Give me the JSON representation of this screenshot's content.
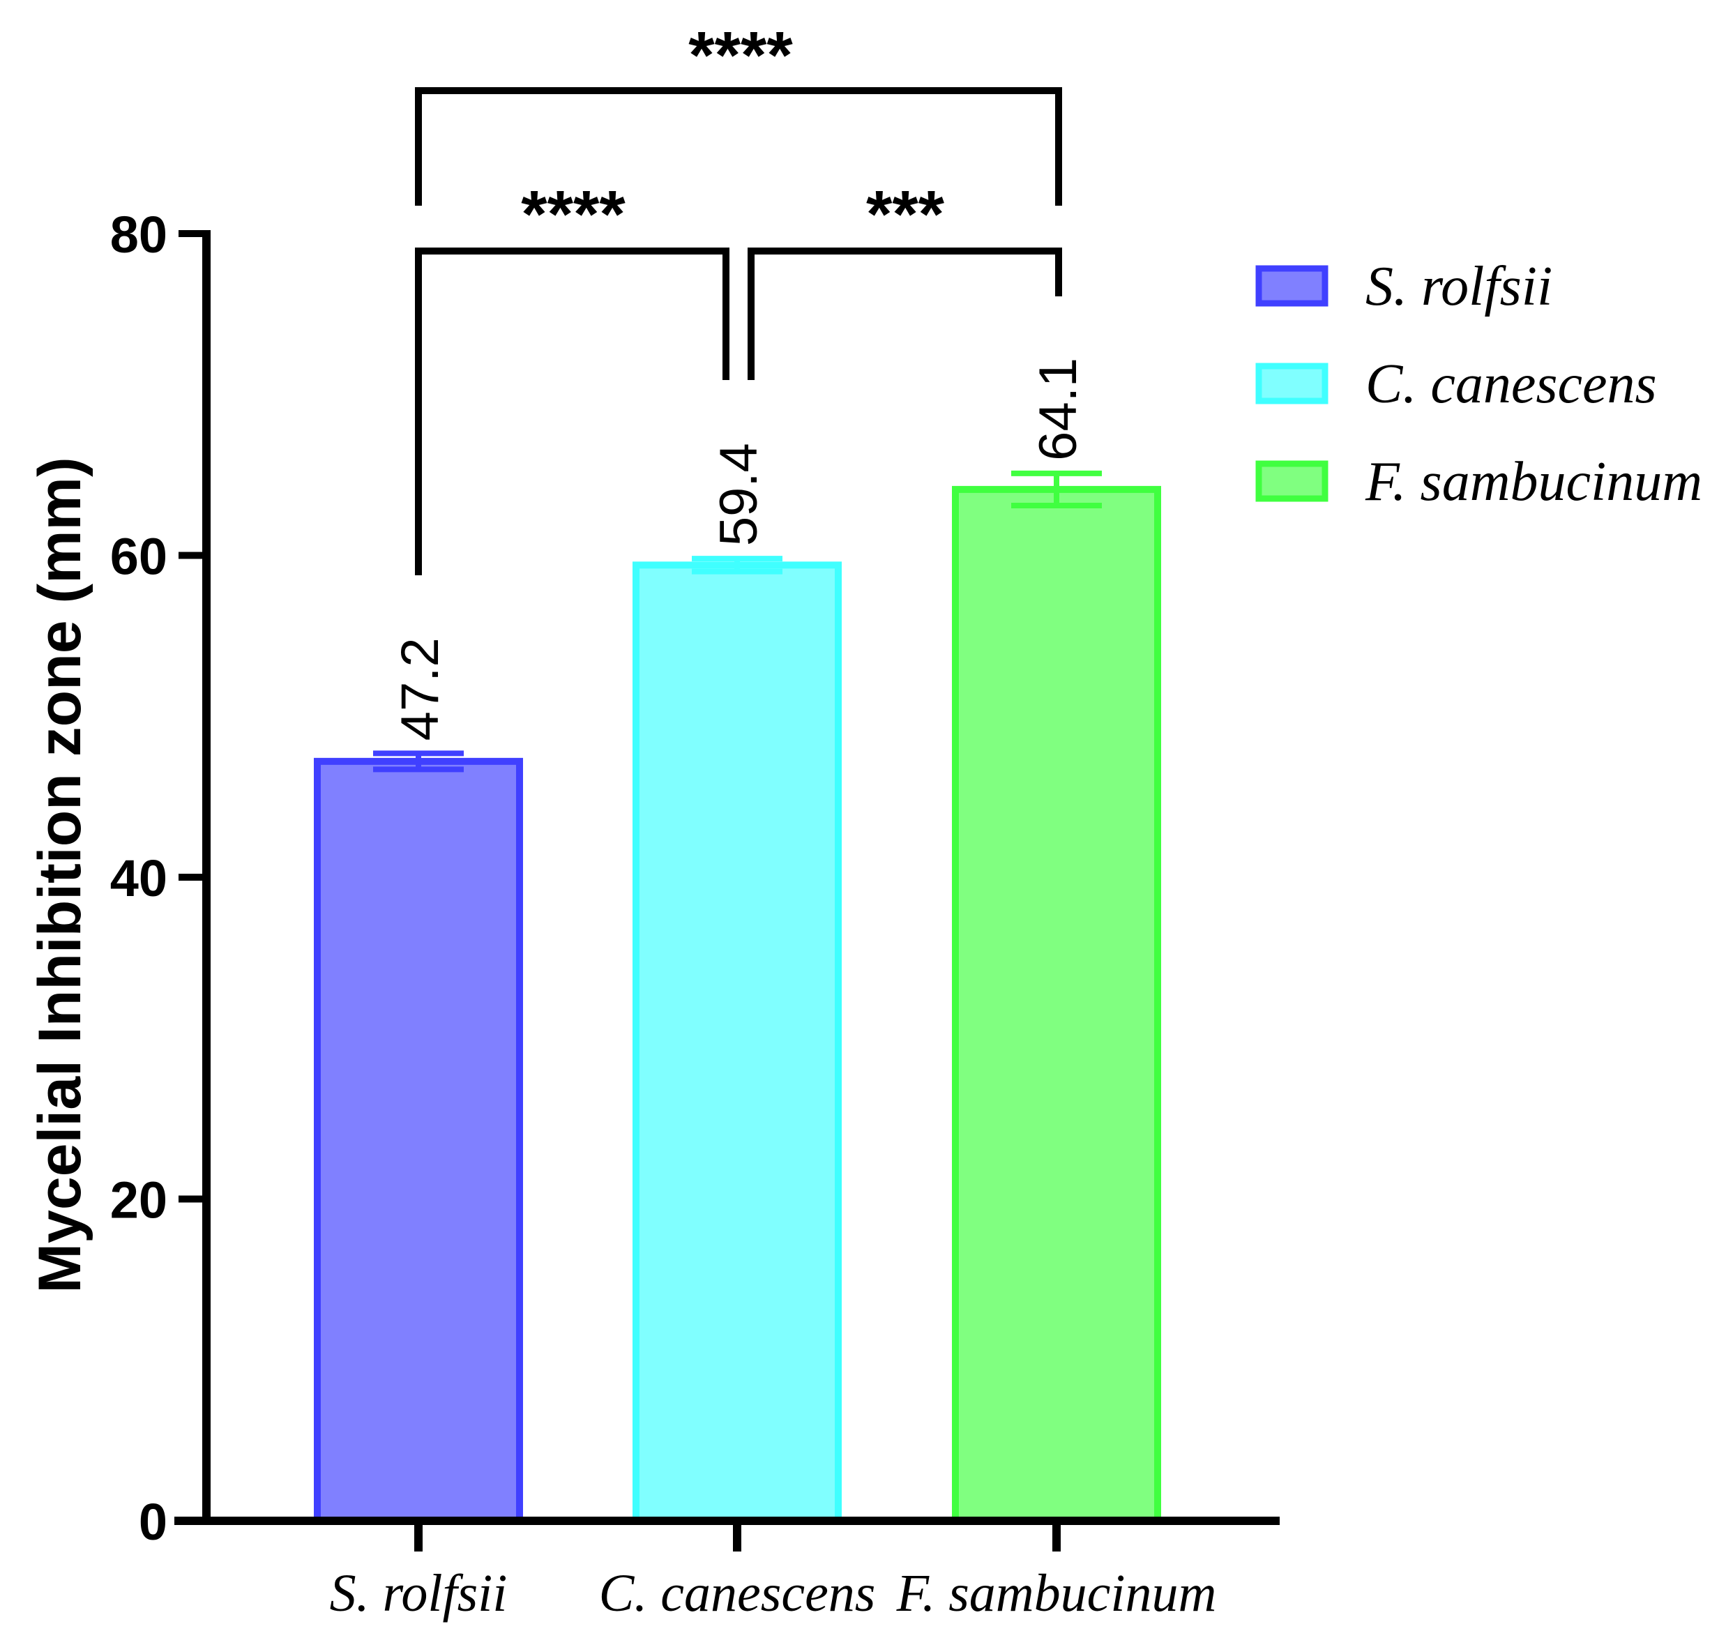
{
  "chart_data": {
    "type": "bar",
    "title": "",
    "xlabel": "",
    "ylabel": "Mycelial Inhibition zone (mm)",
    "ylim": [
      0,
      80
    ],
    "yticks": [
      "0",
      "20",
      "40",
      "60",
      "80"
    ],
    "categories": [
      "S. rolfsii",
      "C. canescens",
      "F. sambucinum"
    ],
    "values": [
      47.2,
      59.4,
      64.1
    ],
    "value_labels": [
      "47.2",
      "59.4",
      "64.1"
    ],
    "errors": [
      0.5,
      0.4,
      1.0
    ],
    "colors": [
      "#8080ff",
      "#80ffff",
      "#80ff80"
    ],
    "edge_colors": [
      "#4040ff",
      "#40ffff",
      "#40ff40"
    ],
    "legend": {
      "placement": "right",
      "entries": [
        "S. rolfsii",
        "C. canescens",
        "F. sambucinum"
      ]
    },
    "significance": [
      {
        "from": 0,
        "to": 2,
        "label": "****",
        "level": 2
      },
      {
        "from": 0,
        "to": 1,
        "label": "****",
        "level": 1
      },
      {
        "from": 1,
        "to": 2,
        "label": "***",
        "level": 1
      }
    ]
  }
}
